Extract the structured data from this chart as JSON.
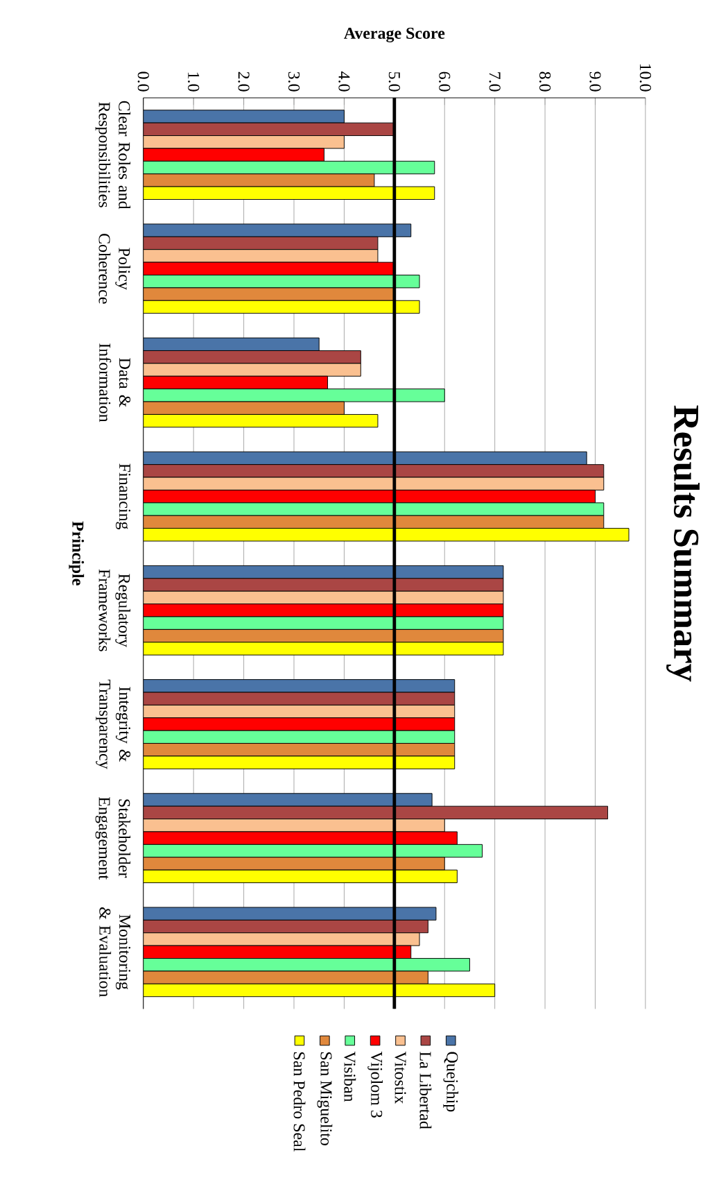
{
  "chart_data": {
    "type": "bar",
    "orientation": "horizontal",
    "title": "Results Summary",
    "xlabel": "Average Score",
    "ylabel": "Principle",
    "categories": [
      "Clear Roles and Responsibilities",
      "Policy Coherence",
      "Data & Information",
      "Financing",
      "Regulatory Frameworks",
      "Integrity & Transparency",
      "Stakeholder Engagement",
      "Monitoring & Evaluation"
    ],
    "series": [
      {
        "name": "Quejchip",
        "color": "#4a74a8",
        "values": [
          4.0,
          5.33,
          3.5,
          8.83,
          7.17,
          6.2,
          5.75,
          5.83
        ]
      },
      {
        "name": "La Libertad",
        "color": "#aa4644",
        "values": [
          5.0,
          4.67,
          4.33,
          9.17,
          7.17,
          6.2,
          9.25,
          5.67
        ]
      },
      {
        "name": "Vitostix",
        "color": "#fac090",
        "values": [
          4.0,
          4.67,
          4.33,
          9.17,
          7.17,
          6.2,
          6.0,
          5.5
        ]
      },
      {
        "name": "Vijolom 3",
        "color": "#ff0000",
        "values": [
          3.6,
          5.0,
          3.67,
          9.0,
          7.17,
          6.2,
          6.25,
          5.33
        ]
      },
      {
        "name": "Visiban",
        "color": "#66ff99",
        "values": [
          5.8,
          5.5,
          6.0,
          9.17,
          7.17,
          6.2,
          6.75,
          6.5
        ]
      },
      {
        "name": "San Miguelito",
        "color": "#e0883c",
        "values": [
          4.6,
          5.0,
          4.0,
          9.17,
          7.17,
          6.2,
          6.0,
          5.67
        ]
      },
      {
        "name": "San Pedro Seal",
        "color": "#ffff00",
        "values": [
          5.8,
          5.5,
          4.67,
          9.67,
          7.17,
          6.2,
          6.25,
          7.0
        ]
      }
    ],
    "xlim": [
      0,
      10
    ],
    "xticks": [
      {
        "value": 0,
        "label": "0.0"
      },
      {
        "value": 1,
        "label": "1.0"
      },
      {
        "value": 2,
        "label": "2.0"
      },
      {
        "value": 3,
        "label": "3.0"
      },
      {
        "value": 4,
        "label": "4.0"
      },
      {
        "value": 5,
        "label": "5.0"
      },
      {
        "value": 6,
        "label": "6.0"
      },
      {
        "value": 7,
        "label": "7.0"
      },
      {
        "value": 8,
        "label": "8.0"
      },
      {
        "value": 9,
        "label": "9.0"
      },
      {
        "value": 10,
        "label": "10.0"
      }
    ],
    "ref_lines": [
      {
        "axis": "x",
        "value": 5.0,
        "color": "#000000"
      }
    ],
    "grid": "x",
    "legend": "bottom"
  }
}
